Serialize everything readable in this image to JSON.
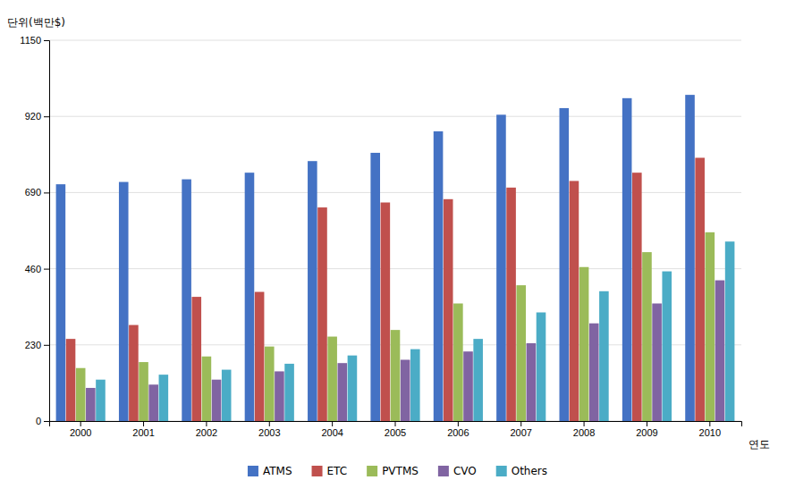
{
  "chart_data": {
    "type": "bar",
    "categories": [
      "2000",
      "2001",
      "2002",
      "2003",
      "2004",
      "2005",
      "2006",
      "2007",
      "2008",
      "2009",
      "2010"
    ],
    "series": [
      {
        "name": "ATMS",
        "color": "#4472C4",
        "values": [
          715,
          722,
          730,
          750,
          785,
          810,
          875,
          925,
          945,
          975,
          985
        ]
      },
      {
        "name": "ETC",
        "color": "#C0504D",
        "values": [
          248,
          290,
          375,
          390,
          645,
          660,
          670,
          705,
          725,
          750,
          795
        ]
      },
      {
        "name": "PVTMS",
        "color": "#9BBB59",
        "values": [
          160,
          178,
          195,
          225,
          255,
          275,
          355,
          410,
          465,
          510,
          570
        ]
      },
      {
        "name": "CVO",
        "color": "#8064A2",
        "values": [
          100,
          110,
          125,
          150,
          175,
          185,
          210,
          235,
          295,
          355,
          425
        ]
      },
      {
        "name": "Others",
        "color": "#4BACC6",
        "values": [
          125,
          140,
          155,
          173,
          198,
          217,
          248,
          328,
          392,
          452,
          542
        ]
      }
    ],
    "xlabel": "연도",
    "ylabel": "단위(백만$)",
    "ylim": [
      0,
      1150
    ],
    "yticks": [
      0,
      230,
      460,
      690,
      920,
      1150
    ],
    "grid": true,
    "legend": "bottom"
  }
}
